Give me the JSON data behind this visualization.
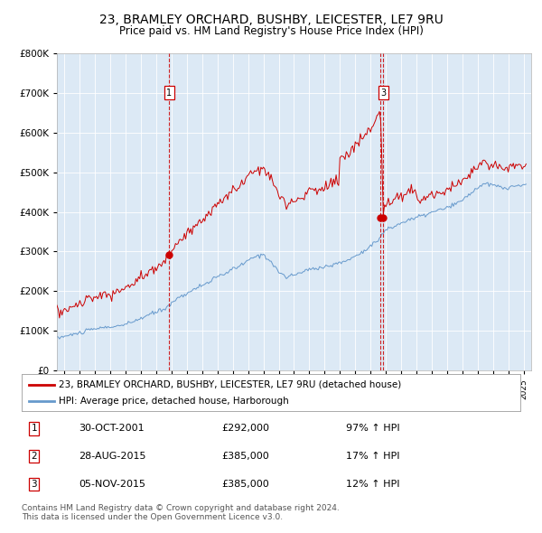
{
  "title": "23, BRAMLEY ORCHARD, BUSHBY, LEICESTER, LE7 9RU",
  "subtitle": "Price paid vs. HM Land Registry's House Price Index (HPI)",
  "bg_color": "#dce9f5",
  "red_line_color": "#cc0000",
  "blue_line_color": "#6699cc",
  "marker_color": "#cc0000",
  "legend_label_red": "23, BRAMLEY ORCHARD, BUSHBY, LEICESTER, LE7 9RU (detached house)",
  "legend_label_blue": "HPI: Average price, detached house, Harborough",
  "transactions": [
    {
      "num": 1,
      "date_num": 2001.83,
      "price": 292000
    },
    {
      "num": 2,
      "date_num": 2015.65,
      "price": 385000
    },
    {
      "num": 3,
      "date_num": 2015.84,
      "price": 385000
    }
  ],
  "table_rows": [
    {
      "num": 1,
      "date": "30-OCT-2001",
      "price": "£292,000",
      "pct": "97% ↑ HPI"
    },
    {
      "num": 2,
      "date": "28-AUG-2015",
      "price": "£385,000",
      "pct": "17% ↑ HPI"
    },
    {
      "num": 3,
      "date": "05-NOV-2015",
      "price": "£385,000",
      "pct": "12% ↑ HPI"
    }
  ],
  "footer": "Contains HM Land Registry data © Crown copyright and database right 2024.\nThis data is licensed under the Open Government Licence v3.0.",
  "ylim": [
    0,
    800000
  ],
  "yticks": [
    0,
    100000,
    200000,
    300000,
    400000,
    500000,
    600000,
    700000,
    800000
  ],
  "xmin": 1994.5,
  "xmax": 2025.5
}
